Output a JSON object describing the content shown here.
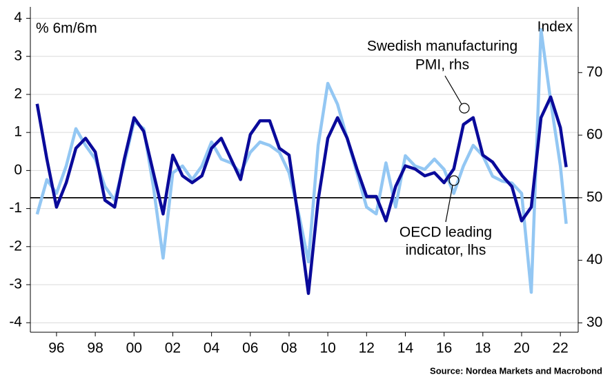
{
  "chart_data": {
    "type": "line",
    "y_label": "% 6m/6m",
    "y2_label": "Index",
    "source": "Source: Nordea Markets and Macrobond",
    "x": [
      1995.0,
      1995.5,
      1996.0,
      1996.5,
      1997.0,
      1997.5,
      1998.0,
      1998.5,
      1999.0,
      1999.5,
      2000.0,
      2000.5,
      2001.0,
      2001.5,
      2002.0,
      2002.5,
      2003.0,
      2003.5,
      2004.0,
      2004.5,
      2005.0,
      2005.5,
      2006.0,
      2006.5,
      2007.0,
      2007.5,
      2008.0,
      2008.5,
      2009.0,
      2009.5,
      2010.0,
      2010.5,
      2011.0,
      2011.5,
      2012.0,
      2012.5,
      2013.0,
      2013.5,
      2014.0,
      2014.5,
      2015.0,
      2015.5,
      2016.0,
      2016.5,
      2017.0,
      2017.5,
      2018.0,
      2018.5,
      2019.0,
      2019.5,
      2020.0,
      2020.5,
      2021.0,
      2021.5,
      2022.0,
      2022.3
    ],
    "xlim": [
      1994.65,
      2022.92
    ],
    "xticks": [
      {
        "value": 1996,
        "label": "96"
      },
      {
        "value": 1998,
        "label": "98"
      },
      {
        "value": 2000,
        "label": "00"
      },
      {
        "value": 2002,
        "label": "02"
      },
      {
        "value": 2004,
        "label": "04"
      },
      {
        "value": 2006,
        "label": "06"
      },
      {
        "value": 2008,
        "label": "08"
      },
      {
        "value": 2010,
        "label": "10"
      },
      {
        "value": 2012,
        "label": "12"
      },
      {
        "value": 2014,
        "label": "14"
      },
      {
        "value": 2016,
        "label": "16"
      },
      {
        "value": 2018,
        "label": "18"
      },
      {
        "value": 2020,
        "label": "20"
      },
      {
        "value": 2022,
        "label": "22"
      }
    ],
    "ylim": [
      -4.25,
      4.3
    ],
    "yticks": [
      4,
      3,
      2,
      1,
      0,
      -1,
      -2,
      -3,
      -4
    ],
    "y2lim": [
      28.5,
      80.5
    ],
    "y2ticks": [
      70,
      60,
      50,
      40,
      30
    ],
    "grid": true,
    "reference_line": {
      "axis": "y2",
      "value": 50,
      "color": "#000000"
    },
    "series": [
      {
        "name": "OECD leading indicator, lhs",
        "color": "#93c7f3",
        "axis": "y",
        "values": [
          -1.15,
          -0.24,
          -0.6,
          0.12,
          1.1,
          0.66,
          0.3,
          -0.42,
          -0.78,
          0.2,
          1.29,
          1.1,
          -0.42,
          -2.3,
          -0.06,
          0.12,
          -0.24,
          0.12,
          0.75,
          0.3,
          0.2,
          -0.06,
          0.48,
          0.75,
          0.66,
          0.48,
          -0.06,
          -1.14,
          -2.4,
          0.66,
          2.29,
          1.74,
          0.84,
          -0.06,
          -0.96,
          -1.14,
          0.2,
          -0.96,
          0.39,
          0.12,
          0.03,
          0.3,
          0.03,
          -0.6,
          0.12,
          0.66,
          0.39,
          -0.15,
          -0.28,
          -0.33,
          -0.6,
          -3.2,
          3.7,
          1.83,
          0.12,
          -1.4
        ]
      },
      {
        "name": "Swedish manufacturing PMI, rhs",
        "color": "#0a0a9a",
        "axis": "y2",
        "values": [
          65,
          56.2,
          48.5,
          52.4,
          57.9,
          59.5,
          57.3,
          49.6,
          48.5,
          56.2,
          62.8,
          60.6,
          54,
          47.4,
          56.8,
          53.5,
          52.4,
          53.5,
          57.9,
          59.5,
          56.2,
          52.9,
          60.1,
          62.3,
          62.3,
          57.9,
          56.8,
          46.3,
          34.7,
          49.6,
          59.5,
          62.8,
          59.5,
          54.6,
          50.2,
          50.2,
          46.3,
          51.8,
          55.1,
          54.6,
          53.5,
          54,
          52.4,
          54.6,
          61.7,
          62.8,
          56.8,
          55.7,
          53.5,
          51.8,
          46.3,
          48.5,
          62.8,
          66.1,
          61.2,
          54.9
        ]
      }
    ],
    "annotations": [
      {
        "lines": [
          "Swedish manufacturing",
          "PMI, rhs"
        ]
      },
      {
        "lines": [
          "OECD leading",
          "indicator, lhs"
        ]
      }
    ]
  }
}
